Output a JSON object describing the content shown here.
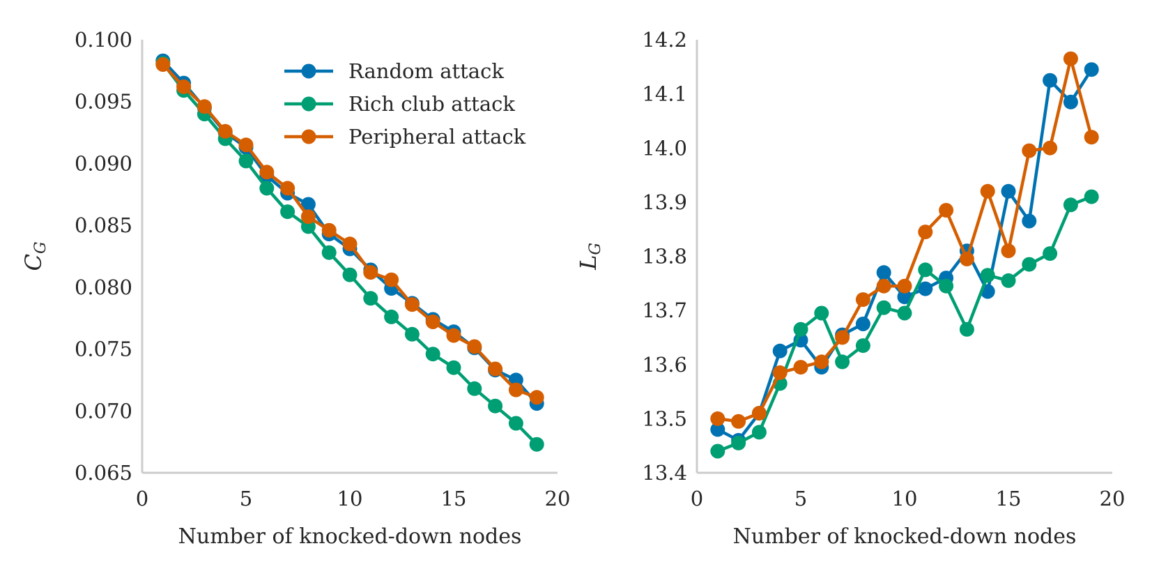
{
  "colors": {
    "random": "#0072b2",
    "rich_club": "#009e73",
    "peripheral": "#d55e00",
    "axis": "#cccccc",
    "text": "#262626"
  },
  "legend": {
    "items": [
      "Random attack",
      "Rich club attack",
      "Peripheral attack"
    ],
    "placement": "top-right"
  },
  "chart_data": [
    {
      "type": "line",
      "xlabel": "Number of knocked-down nodes",
      "ylabel": {
        "main": "C",
        "sub": "G"
      },
      "xlim": [
        0,
        20
      ],
      "ylim": [
        0.065,
        0.1
      ],
      "xticks": [
        0,
        5,
        10,
        15,
        20
      ],
      "xtick_labels": [
        "0",
        "5",
        "10",
        "15",
        "20"
      ],
      "yticks": [
        0.065,
        0.07,
        0.075,
        0.08,
        0.085,
        0.09,
        0.095,
        0.1
      ],
      "ytick_labels": [
        "0.065",
        "0.070",
        "0.075",
        "0.080",
        "0.085",
        "0.090",
        "0.095",
        "0.100"
      ],
      "grid": false,
      "x": [
        1,
        2,
        3,
        4,
        5,
        6,
        7,
        8,
        9,
        10,
        11,
        12,
        13,
        14,
        15,
        16,
        17,
        18,
        19
      ],
      "series": [
        {
          "name": "Random attack",
          "color_key": "random",
          "values": [
            0.0983,
            0.0965,
            0.0945,
            0.0925,
            0.0913,
            0.089,
            0.0876,
            0.0867,
            0.0843,
            0.0831,
            0.0814,
            0.0799,
            0.0787,
            0.0774,
            0.0764,
            0.0751,
            0.0733,
            0.0725,
            0.0706
          ]
        },
        {
          "name": "Rich club attack",
          "color_key": "rich_club",
          "values": [
            0.0981,
            0.0959,
            0.094,
            0.092,
            0.0902,
            0.088,
            0.0861,
            0.0849,
            0.0828,
            0.081,
            0.0791,
            0.0776,
            0.0762,
            0.0746,
            0.0735,
            0.0718,
            0.0704,
            0.069,
            0.0673
          ]
        },
        {
          "name": "Peripheral attack",
          "color_key": "peripheral",
          "values": [
            0.098,
            0.0962,
            0.0946,
            0.0926,
            0.0915,
            0.0893,
            0.088,
            0.0857,
            0.0846,
            0.0835,
            0.0812,
            0.0806,
            0.0786,
            0.0772,
            0.0761,
            0.0752,
            0.0734,
            0.0717,
            0.0711
          ]
        }
      ]
    },
    {
      "type": "line",
      "xlabel": "Number of knocked-down nodes",
      "ylabel": {
        "main": "L",
        "sub": "G"
      },
      "xlim": [
        0,
        20
      ],
      "ylim": [
        13.4,
        14.2
      ],
      "xticks": [
        0,
        5,
        10,
        15,
        20
      ],
      "xtick_labels": [
        "0",
        "5",
        "10",
        "15",
        "20"
      ],
      "yticks": [
        13.4,
        13.5,
        13.6,
        13.7,
        13.8,
        13.9,
        14.0,
        14.1,
        14.2
      ],
      "ytick_labels": [
        "13.4",
        "13.5",
        "13.6",
        "13.7",
        "13.8",
        "13.9",
        "14.0",
        "14.1",
        "14.2"
      ],
      "grid": false,
      "x": [
        1,
        2,
        3,
        4,
        5,
        6,
        7,
        8,
        9,
        10,
        11,
        12,
        13,
        14,
        15,
        16,
        17,
        18,
        19
      ],
      "series": [
        {
          "name": "Random attack",
          "color_key": "random",
          "values": [
            13.48,
            13.46,
            13.51,
            13.625,
            13.645,
            13.595,
            13.655,
            13.675,
            13.77,
            13.725,
            13.74,
            13.76,
            13.81,
            13.735,
            13.92,
            13.865,
            14.125,
            14.085,
            14.145
          ]
        },
        {
          "name": "Rich club attack",
          "color_key": "rich_club",
          "values": [
            13.44,
            13.455,
            13.475,
            13.565,
            13.665,
            13.695,
            13.605,
            13.635,
            13.705,
            13.695,
            13.775,
            13.745,
            13.665,
            13.765,
            13.755,
            13.785,
            13.805,
            13.895,
            13.91
          ]
        },
        {
          "name": "Peripheral attack",
          "color_key": "peripheral",
          "values": [
            13.5,
            13.495,
            13.51,
            13.585,
            13.595,
            13.605,
            13.65,
            13.72,
            13.745,
            13.745,
            13.845,
            13.885,
            13.795,
            13.92,
            13.81,
            13.995,
            14.0,
            14.165,
            14.02
          ]
        }
      ]
    }
  ]
}
